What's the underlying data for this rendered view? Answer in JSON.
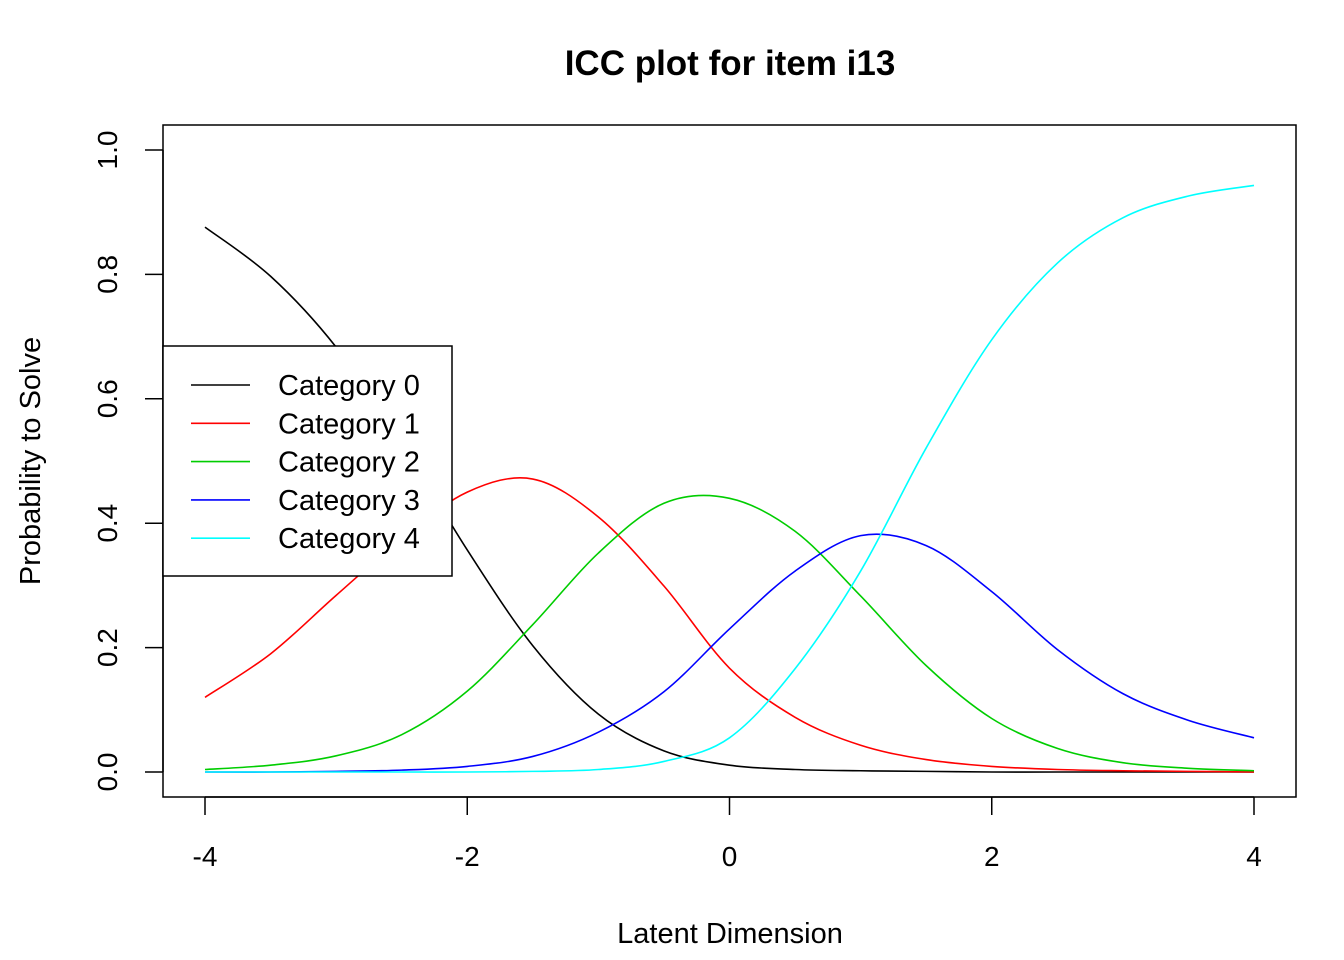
{
  "chart_data": {
    "type": "line",
    "title": "ICC plot for item i13",
    "xlabel": "Latent Dimension",
    "ylabel": "Probability to Solve",
    "xlim": [
      -4,
      4
    ],
    "ylim": [
      0,
      1
    ],
    "x_ticks": [
      "-4",
      "-2",
      "0",
      "2",
      "4"
    ],
    "y_ticks": [
      "0.0",
      "0.2",
      "0.4",
      "0.6",
      "0.8",
      "1.0"
    ],
    "legend_position": "left",
    "grid": false,
    "x": [
      -4,
      -3.5,
      -3,
      -2.5,
      -2,
      -1.5,
      -1,
      -0.5,
      0,
      0.5,
      1,
      1.5,
      2,
      2.5,
      3,
      3.5,
      4
    ],
    "series": [
      {
        "name": "Category 0",
        "color": "#000000",
        "values": [
          0.876,
          0.797,
          0.683,
          0.529,
          0.357,
          0.203,
          0.093,
          0.034,
          0.011,
          0.004,
          0.002,
          0.001,
          0.0,
          0.0,
          0.0,
          0.0,
          0.0
        ]
      },
      {
        "name": "Category 1",
        "color": "#FF0000",
        "values": [
          0.12,
          0.19,
          0.284,
          0.375,
          0.45,
          0.471,
          0.41,
          0.299,
          0.167,
          0.088,
          0.043,
          0.02,
          0.009,
          0.004,
          0.002,
          0.001,
          0.0
        ]
      },
      {
        "name": "Category 2",
        "color": "#00CD00",
        "values": [
          0.004,
          0.011,
          0.026,
          0.06,
          0.13,
          0.237,
          0.352,
          0.432,
          0.44,
          0.387,
          0.283,
          0.171,
          0.086,
          0.038,
          0.015,
          0.006,
          0.002
        ]
      },
      {
        "name": "Category 3",
        "color": "#0000FF",
        "values": [
          0.0,
          0.0,
          0.001,
          0.003,
          0.009,
          0.025,
          0.064,
          0.129,
          0.23,
          0.323,
          0.38,
          0.364,
          0.29,
          0.197,
          0.126,
          0.083,
          0.055
        ]
      },
      {
        "name": "Category 4",
        "color": "#00FFFF",
        "values": [
          0.0,
          0.0,
          0.0,
          0.0,
          0.0,
          0.001,
          0.004,
          0.017,
          0.055,
          0.166,
          0.323,
          0.521,
          0.695,
          0.818,
          0.891,
          0.926,
          0.943
        ]
      }
    ]
  }
}
